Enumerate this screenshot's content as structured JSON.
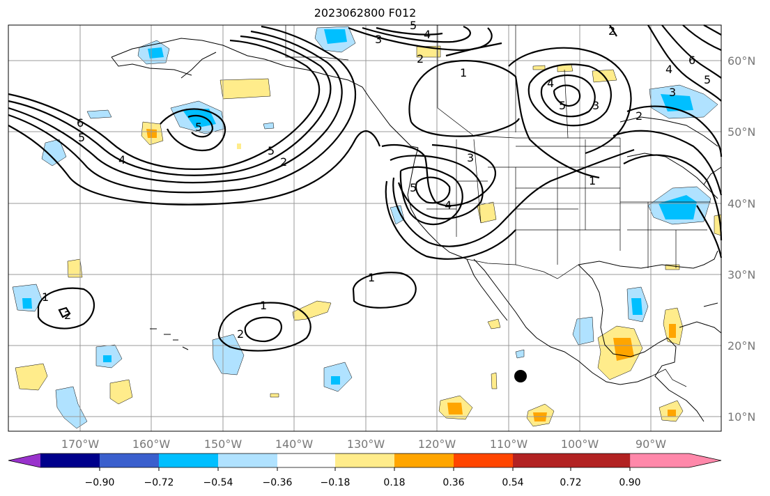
{
  "map": {
    "title": "2023062800 F012",
    "lon_labels": [
      "170°W",
      "160°W",
      "150°W",
      "140°W",
      "130°W",
      "120°W",
      "110°W",
      "100°W",
      "90°W"
    ],
    "lat_labels": [
      "60°N",
      "50°N",
      "40°N",
      "30°N",
      "20°N",
      "10°N"
    ],
    "contour_labels": [
      "1",
      "2",
      "3",
      "4",
      "5",
      "6"
    ],
    "colorbar": {
      "tick_labels": [
        "−0.90",
        "−0.72",
        "−0.54",
        "−0.36",
        "−0.18",
        "0.18",
        "0.36",
        "0.54",
        "0.72",
        "0.90"
      ],
      "colors": [
        "#9932cc",
        "#00008b",
        "#3a5fcd",
        "#00bfff",
        "#b0e2ff",
        "#ffffff",
        "#ffec8b",
        "#ffa500",
        "#ff4500",
        "#b22222",
        "#ff88aa"
      ]
    },
    "marker": "filled-circle"
  }
}
